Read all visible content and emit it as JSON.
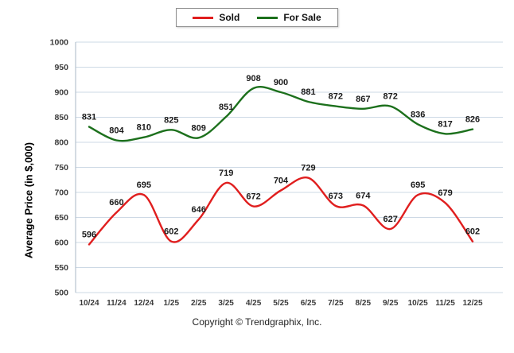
{
  "footer": {
    "copyright": "Copyright © Trendgraphix, Inc."
  },
  "chart_data": {
    "type": "line",
    "title": "",
    "xlabel": "",
    "ylabel": "Average Price (in $,000)",
    "categories": [
      "10/24",
      "11/24",
      "12/24",
      "1/25",
      "2/25",
      "3/25",
      "4/25",
      "5/25",
      "6/25",
      "7/25",
      "8/25",
      "9/25",
      "10/25",
      "11/25",
      "12/25"
    ],
    "series": [
      {
        "name": "Sold",
        "color": "#e01e1e",
        "values": [
          596,
          660,
          695,
          602,
          646,
          719,
          672,
          704,
          729,
          673,
          674,
          627,
          695,
          679,
          602
        ]
      },
      {
        "name": "For Sale",
        "color": "#1c701c",
        "values": [
          831,
          804,
          810,
          825,
          809,
          851,
          908,
          900,
          881,
          872,
          867,
          872,
          836,
          817,
          826
        ]
      }
    ],
    "ylim": [
      500,
      1000
    ],
    "yticks": [
      500,
      550,
      600,
      650,
      700,
      750,
      800,
      850,
      900,
      950,
      1000
    ],
    "grid": true,
    "legend_position": "top",
    "colors": {
      "grid": "#cdd9e5",
      "axis": "#a9b7c6",
      "tick_text": "#3b3b3b",
      "data_label": "#1a1a1a"
    }
  }
}
